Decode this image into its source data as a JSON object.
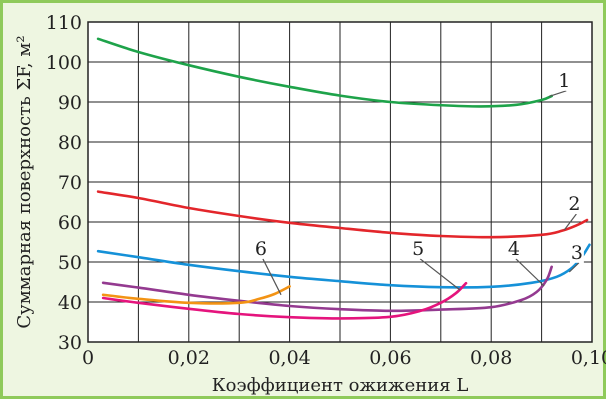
{
  "chart_data": {
    "type": "line",
    "xlabel": "Коэффициент ожижения L",
    "ylabel": "Суммарная поверхность ΣF, м²",
    "xlim": [
      0,
      0.1
    ],
    "ylim": [
      30,
      110
    ],
    "x_ticks": [
      0,
      0.02,
      0.04,
      0.06,
      0.08,
      0.1
    ],
    "x_tick_labels": [
      "0",
      "0,02",
      "0,04",
      "0,06",
      "0,08",
      "0,10"
    ],
    "y_ticks": [
      30,
      40,
      50,
      60,
      70,
      80,
      90,
      100,
      110
    ],
    "y_tick_labels": [
      "30",
      "40",
      "50",
      "60",
      "70",
      "80",
      "90",
      "100",
      "110"
    ],
    "grid": true,
    "series": [
      {
        "name": "1",
        "color": "#1ea34a",
        "x": [
          0.002,
          0.01,
          0.02,
          0.03,
          0.04,
          0.05,
          0.06,
          0.07,
          0.078,
          0.085,
          0.09,
          0.092
        ],
        "y": [
          105.8,
          102.5,
          99.2,
          96.3,
          93.8,
          91.6,
          90.0,
          89.2,
          88.9,
          89.3,
          90.5,
          91.5
        ]
      },
      {
        "name": "2",
        "color": "#e3262b",
        "x": [
          0.002,
          0.01,
          0.02,
          0.03,
          0.04,
          0.05,
          0.06,
          0.07,
          0.08,
          0.09,
          0.094,
          0.097,
          0.099
        ],
        "y": [
          67.6,
          66.0,
          63.5,
          61.5,
          59.8,
          58.5,
          57.3,
          56.5,
          56.2,
          56.8,
          57.8,
          59.2,
          60.5
        ]
      },
      {
        "name": "3",
        "color": "#1591d8",
        "x": [
          0.002,
          0.01,
          0.02,
          0.03,
          0.04,
          0.05,
          0.06,
          0.07,
          0.08,
          0.088,
          0.093,
          0.096,
          0.098,
          0.0995
        ],
        "y": [
          52.7,
          51.2,
          49.3,
          47.7,
          46.3,
          45.2,
          44.2,
          43.7,
          43.8,
          44.8,
          46.3,
          48.5,
          51.3,
          54.3
        ]
      },
      {
        "name": "4",
        "color": "#943a90",
        "x": [
          0.003,
          0.01,
          0.02,
          0.03,
          0.04,
          0.05,
          0.06,
          0.07,
          0.08,
          0.086,
          0.089,
          0.091,
          0.092
        ],
        "y": [
          44.8,
          43.6,
          41.8,
          40.3,
          39.0,
          38.2,
          37.8,
          38.1,
          38.7,
          40.5,
          42.5,
          45.5,
          48.8
        ]
      },
      {
        "name": "5",
        "color": "#e5147d",
        "x": [
          0.003,
          0.01,
          0.02,
          0.03,
          0.04,
          0.05,
          0.06,
          0.066,
          0.07,
          0.073,
          0.075
        ],
        "y": [
          41.0,
          39.8,
          38.3,
          37.0,
          36.2,
          35.9,
          36.3,
          37.8,
          39.8,
          42.2,
          44.7
        ]
      },
      {
        "name": "6",
        "color": "#f39314",
        "x": [
          0.003,
          0.01,
          0.02,
          0.03,
          0.034,
          0.037,
          0.04
        ],
        "y": [
          41.8,
          40.8,
          39.8,
          39.8,
          40.8,
          42.0,
          43.9
        ]
      }
    ],
    "labels": [
      {
        "text": "1",
        "x": 0.0945,
        "y": 93.8,
        "lx": 0.0915,
        "ly": 91.4
      },
      {
        "text": "2",
        "x": 0.0965,
        "y": 63.0,
        "lx": 0.0945,
        "ly": 58.0
      },
      {
        "text": "3",
        "x": 0.097,
        "y": 50.8,
        "lx": 0.0955,
        "ly": 47.5
      },
      {
        "text": "4",
        "x": 0.0845,
        "y": 51.8,
        "lx": 0.0905,
        "ly": 44.0
      },
      {
        "text": "5",
        "x": 0.0655,
        "y": 51.8,
        "lx": 0.0738,
        "ly": 43.0
      },
      {
        "text": "6",
        "x": 0.0343,
        "y": 51.8,
        "lx": 0.0383,
        "ly": 41.8
      }
    ]
  }
}
